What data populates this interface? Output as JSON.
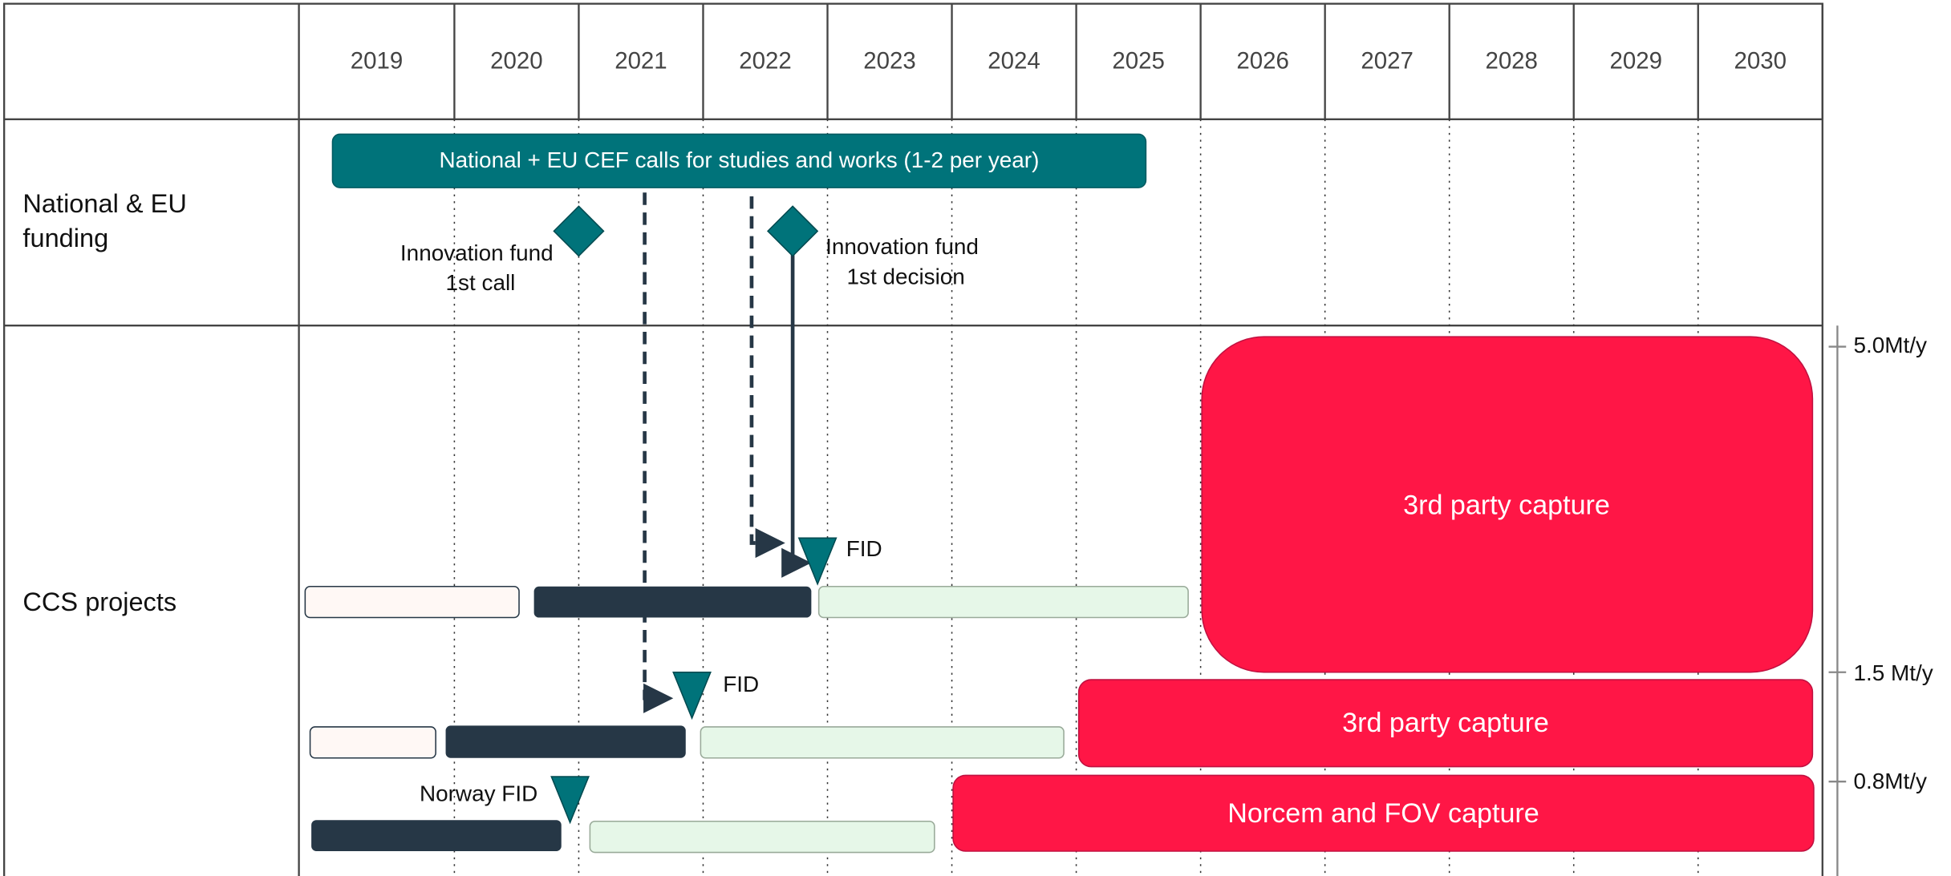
{
  "header": {
    "years": [
      "2019",
      "2020",
      "2021",
      "2022",
      "2023",
      "2024",
      "2025",
      "2026",
      "2027",
      "2028",
      "2029",
      "2030"
    ]
  },
  "rows": [
    {
      "label": [
        "National & EU",
        "funding"
      ]
    },
    {
      "label": [
        "CCS projects"
      ]
    }
  ],
  "funding": {
    "bar_label": "National + EU CEF calls for studies and works  (1-2  per year)",
    "milestones": [
      {
        "label": [
          "Innovation fund",
          "1st call"
        ]
      },
      {
        "label": [
          "Innovation fund",
          "1st decision"
        ]
      }
    ]
  },
  "projects": [
    {
      "milestone": "FID",
      "capture": "3rd party capture",
      "scale": "5.0Mt/y"
    },
    {
      "milestone": "FID",
      "capture": "3rd party capture",
      "scale": "1.5 Mt/y"
    },
    {
      "milestone": "Norway FID",
      "capture": "Norcem and FOV capture",
      "scale": "0.8Mt/y"
    }
  ]
}
